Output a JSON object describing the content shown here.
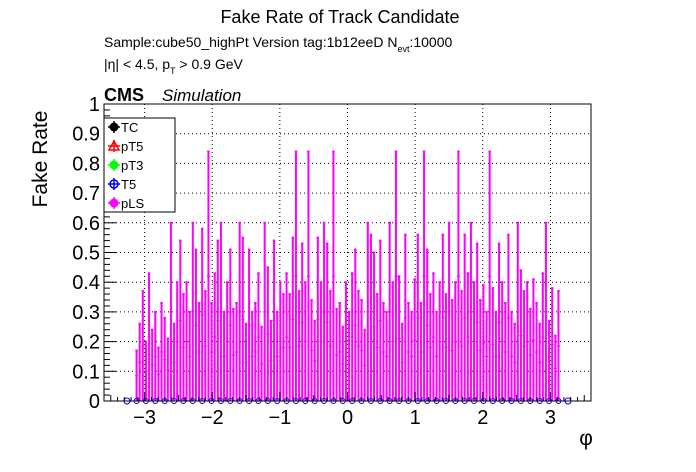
{
  "header": {
    "title": "Fake Rate of Track Candidate",
    "sample_line_prefix": "Sample:cube50_highPt   Version tag:1b12eeD  N",
    "sample_line_sub": "evt",
    "sample_line_suffix": ":10000",
    "cut_line_prefix": "|η| < 4.5, p",
    "cut_line_sub": "T",
    "cut_line_suffix": " > 0.9 GeV",
    "cms": "CMS",
    "simulation": "Simulation"
  },
  "chart_data": {
    "type": "bar",
    "title": "Fake Rate of Track Candidate",
    "xlabel": "φ",
    "ylabel": "Fake Rate",
    "xlim": [
      -3.6,
      3.6
    ],
    "ylim": [
      0,
      1
    ],
    "xticks": [
      -3,
      -2,
      -1,
      0,
      1,
      2,
      3
    ],
    "xtick_labels": [
      "−3",
      "−2",
      "−1",
      "0",
      "1",
      "2",
      "3"
    ],
    "yticks": [
      0,
      0.1,
      0.2,
      0.3,
      0.4,
      0.5,
      0.6,
      0.7,
      0.8,
      0.9,
      1
    ],
    "ytick_labels": [
      "0",
      "0.1",
      "0.2",
      "0.3",
      "0.4",
      "0.5",
      "0.6",
      "0.7",
      "0.8",
      "0.9",
      "1"
    ],
    "grid": true,
    "legend_position": "top-left",
    "bin_range": [
      -3.14159,
      3.14159
    ],
    "series": [
      {
        "name": "TC",
        "color": "#000000",
        "marker": "circle",
        "values": []
      },
      {
        "name": "pT5",
        "color": "#ff0000",
        "marker": "triangle",
        "values": []
      },
      {
        "name": "pT3",
        "color": "#00ff00",
        "marker": "circle",
        "values": []
      },
      {
        "name": "T5",
        "color": "#0000ff",
        "marker": "circle-open",
        "values": []
      },
      {
        "name": "pLS",
        "color": "#ff00ff",
        "marker": "circle",
        "values": [
          0.17,
          0.26,
          0.37,
          0.2,
          0.43,
          0.24,
          0.3,
          0.18,
          0.33,
          0.28,
          0.21,
          0.6,
          0.26,
          0.4,
          0.54,
          0.36,
          0.4,
          0.3,
          0.6,
          0.51,
          0.33,
          0.58,
          0.37,
          0.84,
          0.33,
          0.43,
          0.54,
          0.6,
          0.3,
          0.4,
          0.51,
          0.31,
          0.33,
          0.6,
          0.55,
          0.26,
          0.51,
          0.3,
          0.33,
          0.43,
          0.25,
          0.6,
          0.45,
          0.27,
          0.54,
          0.3,
          0.4,
          0.36,
          0.43,
          0.36,
          0.55,
          0.84,
          0.37,
          0.53,
          0.4,
          0.84,
          0.34,
          0.27,
          0.55,
          0.4,
          0.6,
          0.53,
          0.37,
          0.84,
          0.31,
          0.33,
          0.25,
          0.4,
          0.3,
          0.43,
          0.51,
          0.37,
          0.34,
          0.24,
          0.6,
          0.56,
          0.5,
          0.36,
          0.54,
          0.33,
          0.3,
          0.6,
          0.4,
          0.84,
          0.42,
          0.26,
          0.56,
          0.33,
          0.3,
          0.41,
          0.56,
          0.33,
          0.84,
          0.51,
          0.36,
          0.43,
          0.3,
          0.4,
          0.56,
          0.36,
          0.6,
          0.34,
          0.4,
          0.84,
          0.37,
          0.56,
          0.43,
          0.6,
          0.4,
          0.53,
          0.34,
          0.39,
          0.3,
          0.84,
          0.38,
          0.3,
          0.53,
          0.4,
          0.33,
          0.56,
          0.3,
          0.26,
          0.6,
          0.44,
          0.37,
          0.4,
          0.31,
          0.41,
          0.33,
          0.26,
          0.43,
          0.6,
          0.27,
          0.38,
          0.22,
          0.37
        ]
      }
    ]
  }
}
